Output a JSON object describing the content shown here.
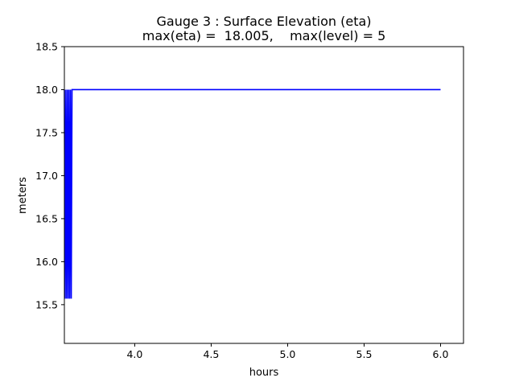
{
  "chart_data": {
    "type": "line",
    "title": "Gauge 3 : Surface Elevation (eta)",
    "subtitle": "max(eta) =  18.005,    max(level) = 5",
    "xlabel": "hours",
    "ylabel": "meters",
    "xlim": [
      3.54,
      6.15
    ],
    "ylim": [
      15.05,
      18.5
    ],
    "xticks": [
      "4.0",
      "4.5",
      "5.0",
      "5.5",
      "6.0"
    ],
    "yticks": [
      "15.5",
      "16.0",
      "16.5",
      "17.0",
      "17.5",
      "18.0",
      "18.5"
    ],
    "grid": false,
    "series": [
      {
        "color": "#0000ff",
        "x": [
          3.54,
          3.545,
          3.55,
          3.555,
          3.56,
          3.565,
          3.57,
          3.575,
          3.58,
          3.585,
          3.59,
          3.6,
          4.0,
          4.5,
          5.0,
          5.5,
          6.0
        ],
        "y": [
          18.0,
          15.57,
          18.0,
          15.57,
          18.0,
          15.57,
          18.0,
          15.57,
          18.0,
          15.57,
          18.0,
          18.0,
          18.0,
          18.0,
          18.0,
          18.0,
          18.0
        ]
      }
    ]
  }
}
